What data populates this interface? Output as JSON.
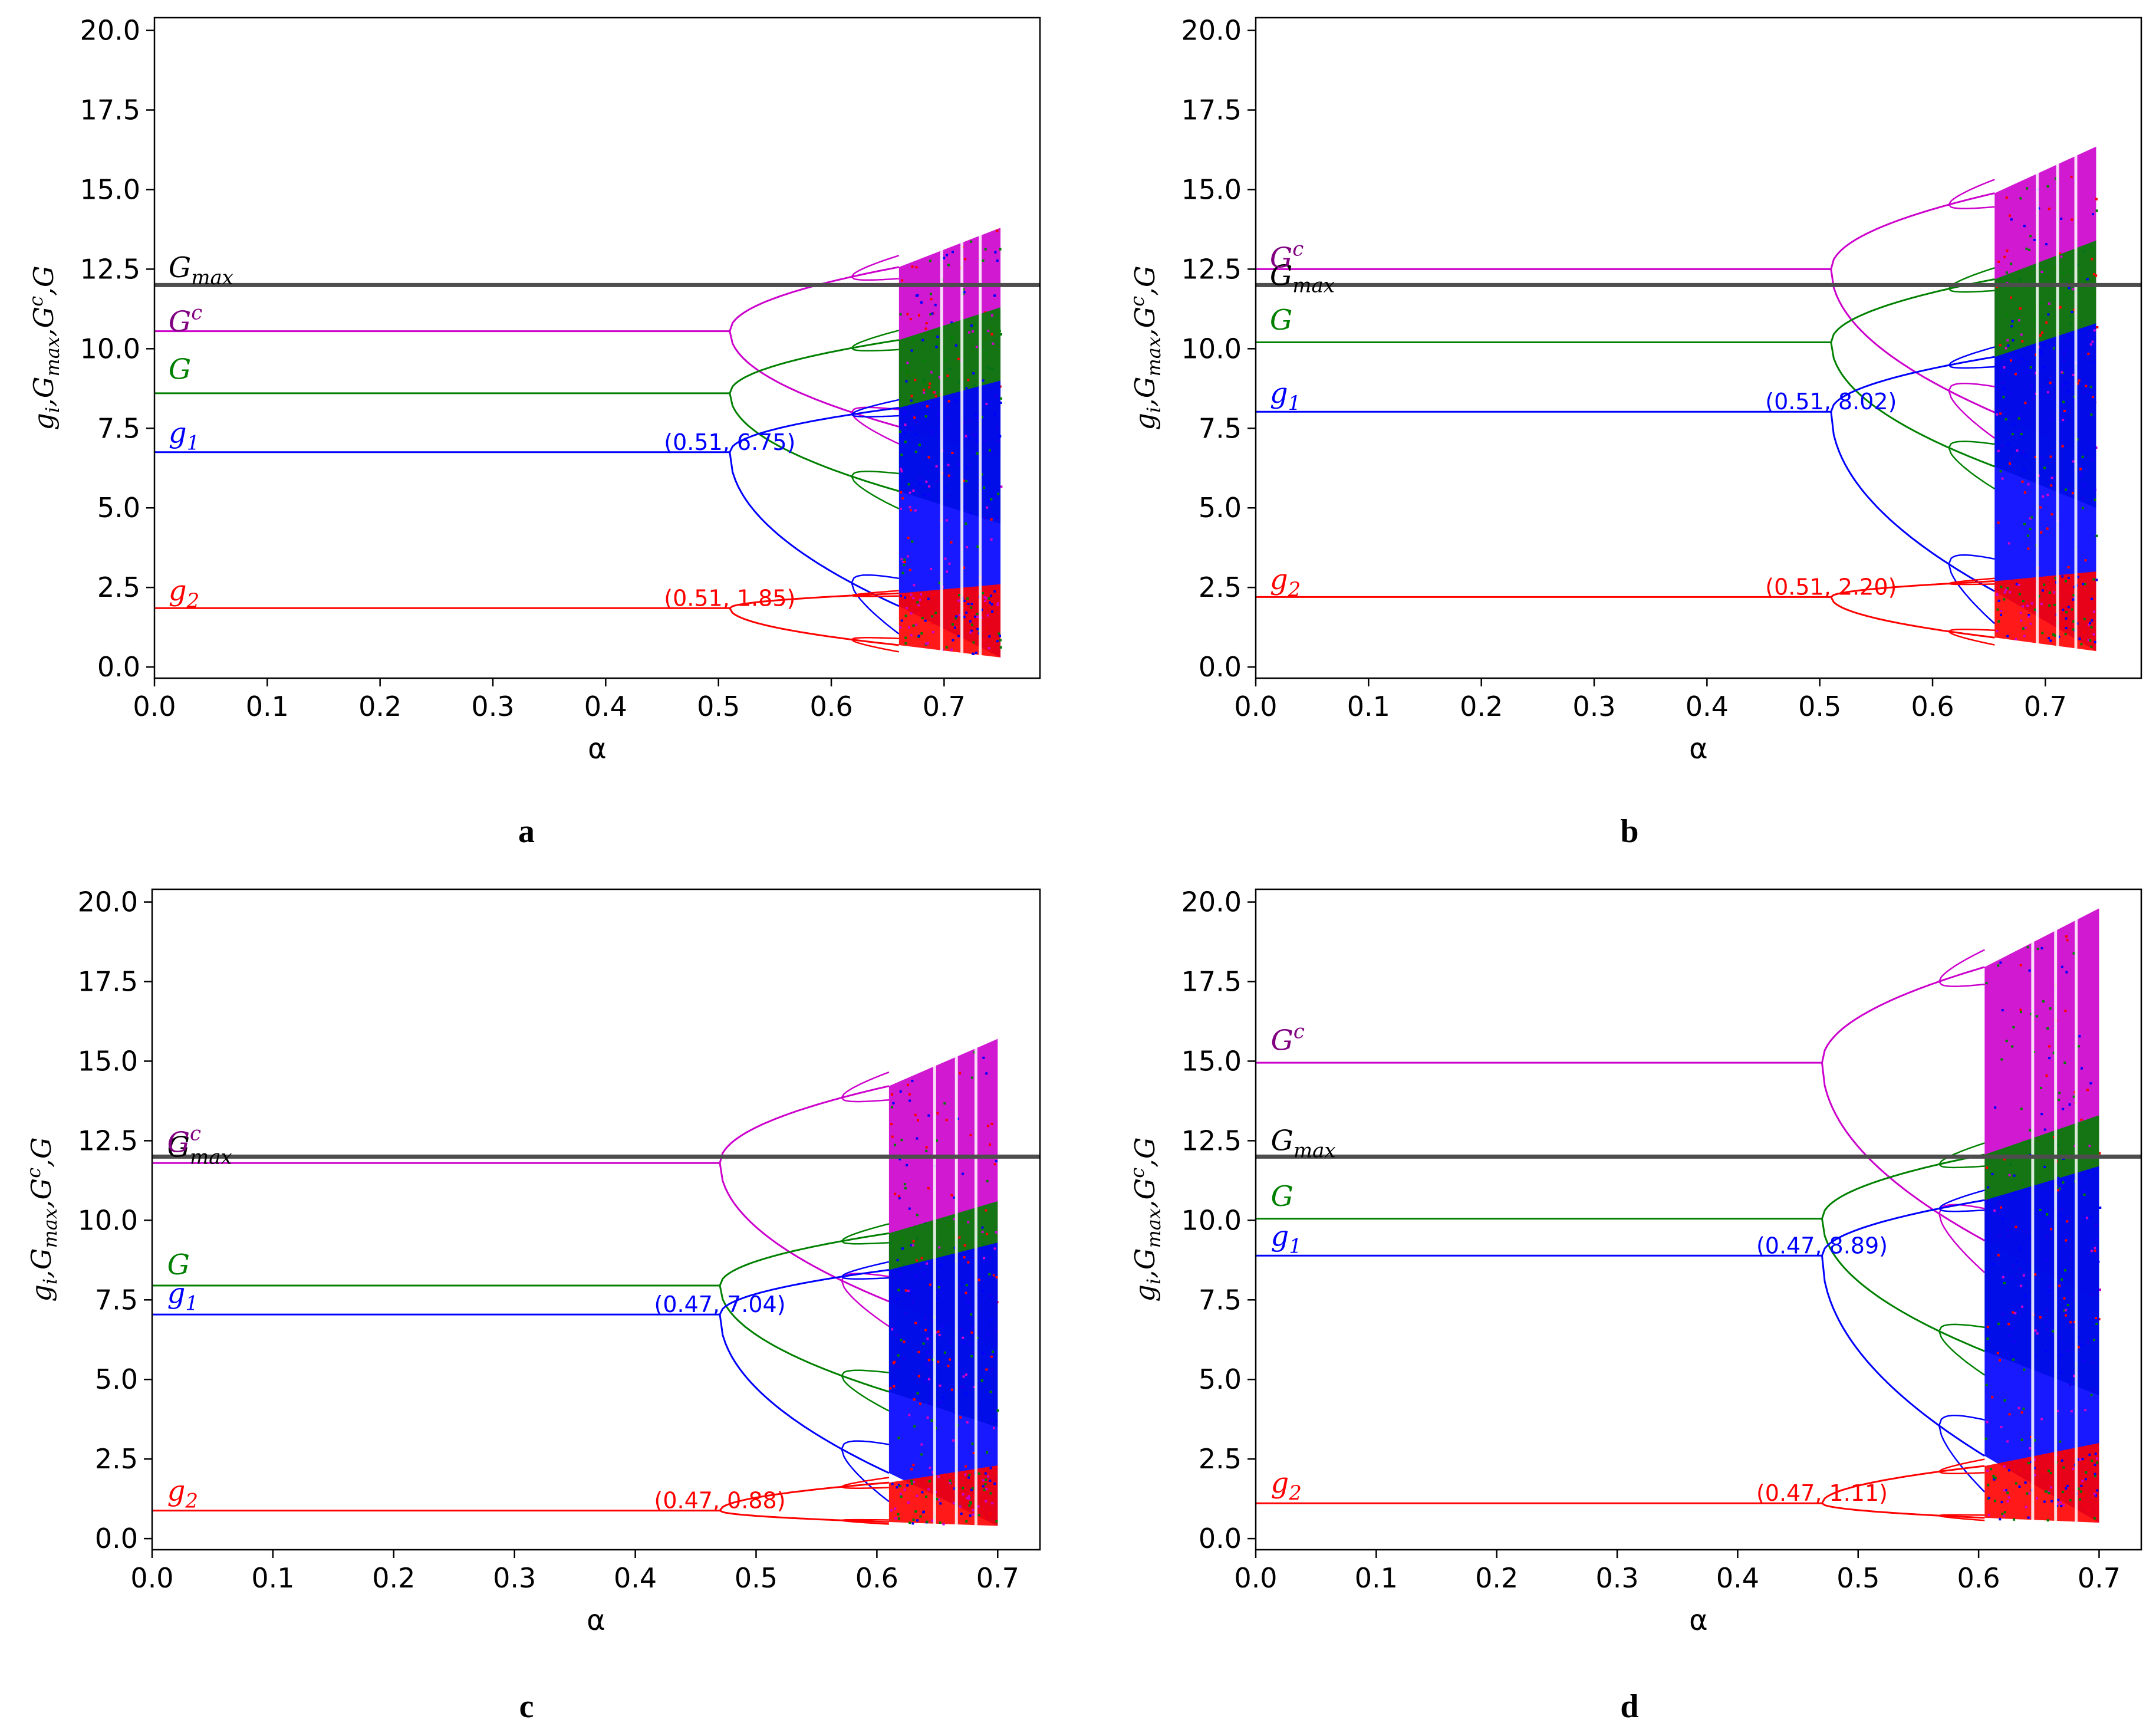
{
  "chart_data": [
    {
      "panel": "a",
      "type": "line",
      "caption": "a",
      "xlabel": "α",
      "ylabel": [
        "g",
        "i",
        ",G",
        "max",
        ",G",
        "c",
        ",G"
      ],
      "xlim": [
        0.0,
        0.785
      ],
      "ylim": [
        -0.35,
        20.4
      ],
      "xticks": [
        0.0,
        0.1,
        0.2,
        0.3,
        0.4,
        0.5,
        0.6,
        0.7
      ],
      "xtick_labels": [
        "0.0",
        "0.1",
        "0.2",
        "0.3",
        "0.4",
        "0.5",
        "0.6",
        "0.7"
      ],
      "yticks": [
        0.0,
        2.5,
        5.0,
        7.5,
        10.0,
        12.5,
        15.0,
        17.5,
        20.0
      ],
      "ytick_labels": [
        "0.0",
        "2.5",
        "5.0",
        "7.5",
        "10.0",
        "12.5",
        "15.0",
        "17.5",
        "20.0"
      ],
      "gmax": 12.0,
      "bifurcation_alpha": 0.51,
      "chaos_alpha": 0.66,
      "alpha_max": 0.75,
      "series": [
        {
          "name": "Gc",
          "color": "#cc00cc",
          "fixed": 10.55,
          "lo": 6.55,
          "hi": 13.8
        },
        {
          "name": "G",
          "color": "#008000",
          "fixed": 8.6,
          "lo": 4.5,
          "hi": 11.3
        },
        {
          "name": "g1",
          "color": "#0000ff",
          "fixed": 6.75,
          "lo": 0.3,
          "hi": 9.0
        },
        {
          "name": "g2",
          "color": "#ff0000",
          "fixed": 1.85,
          "lo": 0.3,
          "hi": 2.6
        }
      ],
      "labels": {
        "gmax": [
          "G",
          "max"
        ],
        "Gc": [
          "G",
          "c"
        ],
        "G": [
          "G",
          ""
        ],
        "g1": [
          "g",
          "1"
        ],
        "g2": [
          "g",
          "2"
        ]
      },
      "label_y": {
        "gmax": 12.25,
        "Gc": 10.55,
        "G": 9.05,
        "g1": 7.05,
        "g2": 2.1
      },
      "annotations": [
        {
          "text": "(0.51, 6.75)",
          "x": 0.51,
          "y": 6.75,
          "color": "#0000ff"
        },
        {
          "text": "(0.51, 1.85)",
          "x": 0.51,
          "y": 1.85,
          "color": "#ff0000"
        }
      ]
    },
    {
      "panel": "b",
      "type": "line",
      "caption": "b",
      "xlabel": "α",
      "ylabel": [
        "g",
        "i",
        ",G",
        "max",
        ",G",
        "c",
        ",G"
      ],
      "xlim": [
        0.0,
        0.785
      ],
      "ylim": [
        -0.35,
        20.4
      ],
      "xticks": [
        0.0,
        0.1,
        0.2,
        0.3,
        0.4,
        0.5,
        0.6,
        0.7
      ],
      "xtick_labels": [
        "0.0",
        "0.1",
        "0.2",
        "0.3",
        "0.4",
        "0.5",
        "0.6",
        "0.7"
      ],
      "yticks": [
        0.0,
        2.5,
        5.0,
        7.5,
        10.0,
        12.5,
        15.0,
        17.5,
        20.0
      ],
      "ytick_labels": [
        "0.0",
        "2.5",
        "5.0",
        "7.5",
        "10.0",
        "12.5",
        "15.0",
        "17.5",
        "20.0"
      ],
      "gmax": 12.0,
      "bifurcation_alpha": 0.51,
      "chaos_alpha": 0.655,
      "alpha_max": 0.745,
      "series": [
        {
          "name": "Gc",
          "color": "#cc00cc",
          "fixed": 12.5,
          "lo": 6.5,
          "hi": 16.35
        },
        {
          "name": "G",
          "color": "#008000",
          "fixed": 10.2,
          "lo": 5.0,
          "hi": 13.4
        },
        {
          "name": "g1",
          "color": "#0000ff",
          "fixed": 8.02,
          "lo": 0.5,
          "hi": 10.8
        },
        {
          "name": "g2",
          "color": "#ff0000",
          "fixed": 2.2,
          "lo": 0.5,
          "hi": 3.0
        }
      ],
      "labels": {
        "gmax": [
          "G",
          "max"
        ],
        "Gc": [
          "G",
          "c"
        ],
        "G": [
          "G",
          ""
        ],
        "g1": [
          "g",
          "1"
        ],
        "g2": [
          "g",
          "2"
        ]
      },
      "label_y": {
        "gmax": 12.0,
        "Gc": 12.55,
        "G": 10.6,
        "g1": 8.3,
        "g2": 2.45
      },
      "annotations": [
        {
          "text": "(0.51, 8.02)",
          "x": 0.51,
          "y": 8.02,
          "color": "#0000ff"
        },
        {
          "text": "(0.51, 2.20)",
          "x": 0.51,
          "y": 2.2,
          "color": "#ff0000"
        }
      ]
    },
    {
      "panel": "c",
      "type": "line",
      "caption": "c",
      "xlabel": "α",
      "ylabel": [
        "g",
        "i",
        ",G",
        "max",
        ",G",
        "c",
        ",G"
      ],
      "xlim": [
        0.0,
        0.735
      ],
      "ylim": [
        -0.35,
        20.4
      ],
      "xticks": [
        0.0,
        0.1,
        0.2,
        0.3,
        0.4,
        0.5,
        0.6,
        0.7
      ],
      "xtick_labels": [
        "0.0",
        "0.1",
        "0.2",
        "0.3",
        "0.4",
        "0.5",
        "0.6",
        "0.7"
      ],
      "yticks": [
        0.0,
        2.5,
        5.0,
        7.5,
        10.0,
        12.5,
        15.0,
        17.5,
        20.0
      ],
      "ytick_labels": [
        "0.0",
        "2.5",
        "5.0",
        "7.5",
        "10.0",
        "12.5",
        "15.0",
        "17.5",
        "20.0"
      ],
      "gmax": 12.0,
      "bifurcation_alpha": 0.47,
      "chaos_alpha": 0.61,
      "alpha_max": 0.7,
      "series": [
        {
          "name": "Gc",
          "color": "#cc00cc",
          "fixed": 11.8,
          "lo": 6.0,
          "hi": 15.7
        },
        {
          "name": "G",
          "color": "#008000",
          "fixed": 7.95,
          "lo": 3.5,
          "hi": 10.6
        },
        {
          "name": "g1",
          "color": "#0000ff",
          "fixed": 7.04,
          "lo": 0.4,
          "hi": 9.3
        },
        {
          "name": "g2",
          "color": "#ff0000",
          "fixed": 0.88,
          "lo": 0.4,
          "hi": 2.3
        }
      ],
      "labels": {
        "gmax": [
          "G",
          "max"
        ],
        "Gc": [
          "G",
          "c"
        ],
        "G": [
          "G",
          ""
        ],
        "g1": [
          "g",
          "1"
        ],
        "g2": [
          "g",
          "2"
        ]
      },
      "label_y": {
        "gmax": 12.0,
        "Gc": 12.15,
        "G": 8.3,
        "g1": 7.4,
        "g2": 1.2
      },
      "annotations": [
        {
          "text": "(0.47, 7.04)",
          "x": 0.47,
          "y": 7.04,
          "color": "#0000ff"
        },
        {
          "text": "(0.47, 0.88)",
          "x": 0.47,
          "y": 0.88,
          "color": "#ff0000"
        }
      ]
    },
    {
      "panel": "d",
      "type": "line",
      "caption": "d",
      "xlabel": "α",
      "ylabel": [
        "g",
        "i",
        ",G",
        "max",
        ",G",
        "c",
        ",G"
      ],
      "xlim": [
        0.0,
        0.735
      ],
      "ylim": [
        -0.35,
        20.4
      ],
      "xticks": [
        0.0,
        0.1,
        0.2,
        0.3,
        0.4,
        0.5,
        0.6,
        0.7
      ],
      "xtick_labels": [
        "0.0",
        "0.1",
        "0.2",
        "0.3",
        "0.4",
        "0.5",
        "0.6",
        "0.7"
      ],
      "yticks": [
        0.0,
        2.5,
        5.0,
        7.5,
        10.0,
        12.5,
        15.0,
        17.5,
        20.0
      ],
      "ytick_labels": [
        "0.0",
        "2.5",
        "5.0",
        "7.5",
        "10.0",
        "12.5",
        "15.0",
        "17.5",
        "20.0"
      ],
      "gmax": 12.0,
      "bifurcation_alpha": 0.47,
      "chaos_alpha": 0.605,
      "alpha_max": 0.7,
      "series": [
        {
          "name": "Gc",
          "color": "#cc00cc",
          "fixed": 14.95,
          "lo": 7.5,
          "hi": 19.8
        },
        {
          "name": "G",
          "color": "#008000",
          "fixed": 10.05,
          "lo": 4.5,
          "hi": 13.3
        },
        {
          "name": "g1",
          "color": "#0000ff",
          "fixed": 8.89,
          "lo": 0.5,
          "hi": 11.7
        },
        {
          "name": "g2",
          "color": "#ff0000",
          "fixed": 1.11,
          "lo": 0.5,
          "hi": 3.0
        }
      ],
      "labels": {
        "gmax": [
          "G",
          "max"
        ],
        "Gc": [
          "G",
          "c"
        ],
        "G": [
          "G",
          ""
        ],
        "g1": [
          "g",
          "1"
        ],
        "g2": [
          "g",
          "2"
        ]
      },
      "label_y": {
        "gmax": 12.2,
        "Gc": 15.35,
        "G": 10.45,
        "g1": 9.2,
        "g2": 1.45
      },
      "annotations": [
        {
          "text": "(0.47, 8.89)",
          "x": 0.47,
          "y": 8.89,
          "color": "#0000ff"
        },
        {
          "text": "(0.47, 1.11)",
          "x": 0.47,
          "y": 1.11,
          "color": "#ff0000"
        }
      ]
    }
  ]
}
